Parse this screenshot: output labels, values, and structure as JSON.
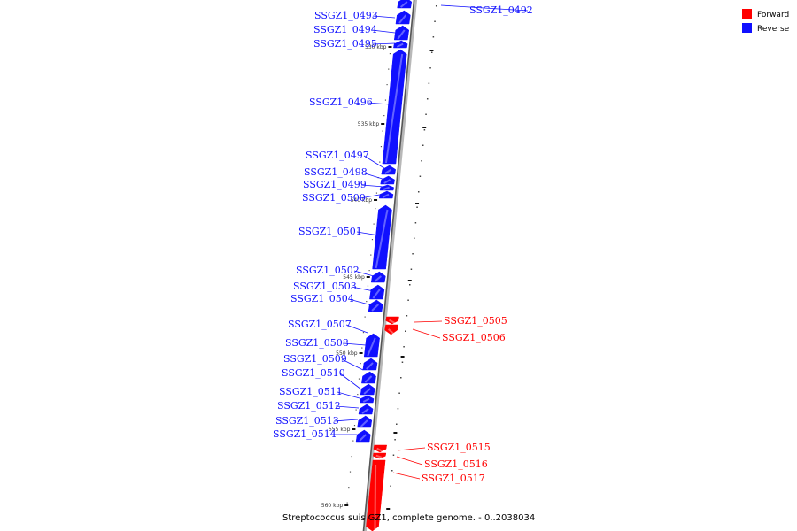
{
  "legend": {
    "forward_label": "Forward",
    "reverse_label": "Reverse",
    "forward_color": "#ff0000",
    "reverse_color": "#1010ff"
  },
  "caption": "Streptococcus suis GZ1, complete genome. - 0..2038034",
  "kbp_ticks": [
    "530 kbp",
    "535 kbp",
    "540 kbp",
    "545 kbp",
    "550 kbp",
    "555 kbp",
    "560 kbp"
  ],
  "genes": [
    {
      "name": "SSGZ1_0492",
      "strand": "reverse"
    },
    {
      "name": "SSGZ1_0493",
      "strand": "reverse"
    },
    {
      "name": "SSGZ1_0494",
      "strand": "reverse"
    },
    {
      "name": "SSGZ1_0495",
      "strand": "reverse"
    },
    {
      "name": "SSGZ1_0496",
      "strand": "reverse"
    },
    {
      "name": "SSGZ1_0497",
      "strand": "reverse"
    },
    {
      "name": "SSGZ1_0498",
      "strand": "reverse"
    },
    {
      "name": "SSGZ1_0499",
      "strand": "reverse"
    },
    {
      "name": "SSGZ1_0500",
      "strand": "reverse"
    },
    {
      "name": "SSGZ1_0501",
      "strand": "reverse"
    },
    {
      "name": "SSGZ1_0502",
      "strand": "reverse"
    },
    {
      "name": "SSGZ1_0503",
      "strand": "reverse"
    },
    {
      "name": "SSGZ1_0504",
      "strand": "reverse"
    },
    {
      "name": "SSGZ1_0505",
      "strand": "forward"
    },
    {
      "name": "SSGZ1_0506",
      "strand": "forward"
    },
    {
      "name": "SSGZ1_0507",
      "strand": "reverse"
    },
    {
      "name": "SSGZ1_0508",
      "strand": "reverse"
    },
    {
      "name": "SSGZ1_0509",
      "strand": "reverse"
    },
    {
      "name": "SSGZ1_0510",
      "strand": "reverse"
    },
    {
      "name": "SSGZ1_0511",
      "strand": "reverse"
    },
    {
      "name": "SSGZ1_0512",
      "strand": "reverse"
    },
    {
      "name": "SSGZ1_0513",
      "strand": "reverse"
    },
    {
      "name": "SSGZ1_0514",
      "strand": "reverse"
    },
    {
      "name": "SSGZ1_0515",
      "strand": "forward"
    },
    {
      "name": "SSGZ1_0516",
      "strand": "forward"
    },
    {
      "name": "SSGZ1_0517",
      "strand": "forward"
    }
  ]
}
